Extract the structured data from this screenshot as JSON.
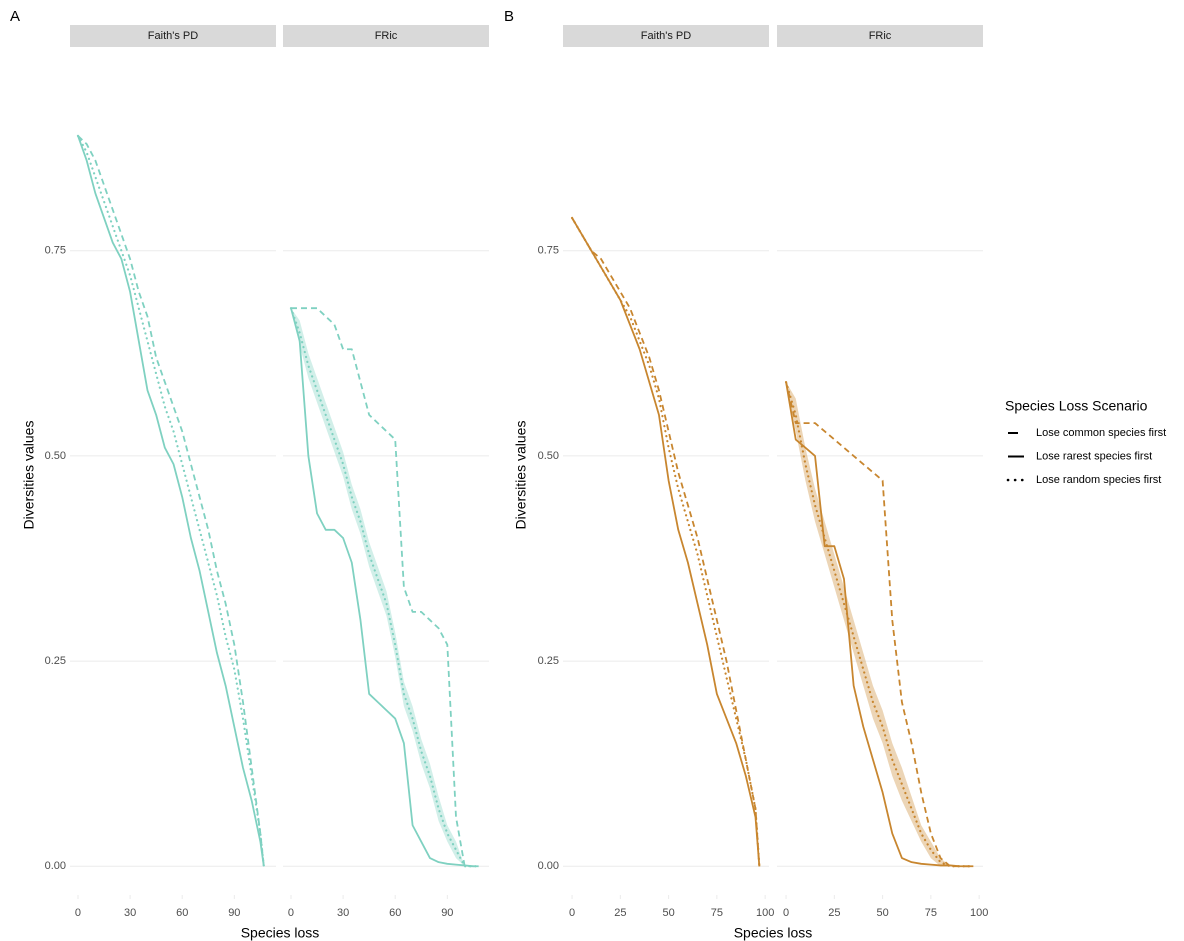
{
  "figure": {
    "groups": [
      {
        "tag": "A",
        "ylabel": "Diversities values",
        "xlabel": "Species loss"
      },
      {
        "tag": "B",
        "ylabel": "Diversities values",
        "xlabel": "Species loss"
      }
    ],
    "legend": {
      "title": "Species Loss Scenario"
    }
  },
  "chart_data": [
    {
      "type": "line",
      "title": "Faith's PD",
      "group": 0,
      "x": [
        0,
        5,
        10,
        15,
        20,
        25,
        30,
        35,
        40,
        45,
        50,
        55,
        60,
        65,
        70,
        75,
        80,
        85,
        90,
        95,
        100,
        105,
        107
      ],
      "xlim": [
        -4.6,
        114
      ],
      "xticks": [
        0,
        30,
        60,
        90
      ],
      "ylim": [
        -0.035,
        0.98
      ],
      "yticks": [
        {
          "value": 0,
          "label": "0.00"
        },
        {
          "value": 0.25,
          "label": "0.25"
        },
        {
          "value": 0.5,
          "label": "0.50"
        },
        {
          "value": 0.75,
          "label": "0.75"
        }
      ],
      "grid": true,
      "series": [
        {
          "name": "Lose common species first",
          "color": "#7fd1c1",
          "linestyle": "dashed",
          "values": [
            0.89,
            0.88,
            0.86,
            0.83,
            0.8,
            0.77,
            0.74,
            0.7,
            0.67,
            0.62,
            0.59,
            0.56,
            0.53,
            0.49,
            0.45,
            0.41,
            0.36,
            0.32,
            0.27,
            0.2,
            0.12,
            0.04,
            0.0
          ]
        },
        {
          "name": "Lose rarest species first",
          "color": "#7fd1c1",
          "linestyle": "solid",
          "values": [
            0.89,
            0.86,
            0.82,
            0.79,
            0.76,
            0.74,
            0.7,
            0.64,
            0.58,
            0.55,
            0.51,
            0.49,
            0.45,
            0.4,
            0.36,
            0.31,
            0.26,
            0.22,
            0.17,
            0.12,
            0.08,
            0.03,
            0.0
          ]
        },
        {
          "name": "Lose random species first",
          "color": "#7fd1c1",
          "linestyle": "dotted",
          "values": [
            0.89,
            0.87,
            0.84,
            0.81,
            0.78,
            0.75,
            0.72,
            0.68,
            0.64,
            0.6,
            0.56,
            0.53,
            0.49,
            0.45,
            0.41,
            0.37,
            0.33,
            0.28,
            0.24,
            0.18,
            0.11,
            0.04,
            0.0
          ]
        }
      ]
    },
    {
      "type": "line",
      "title": "FRic",
      "group": 0,
      "x": [
        0,
        5,
        10,
        15,
        20,
        25,
        30,
        35,
        40,
        45,
        50,
        55,
        60,
        65,
        70,
        75,
        80,
        85,
        90,
        95,
        100,
        105,
        108
      ],
      "xlim": [
        -4.6,
        114
      ],
      "xticks": [
        0,
        30,
        60,
        90
      ],
      "ylim": [
        -0.035,
        0.98
      ],
      "yticks": [
        {
          "value": 0,
          "label": "0.00"
        },
        {
          "value": 0.25,
          "label": "0.25"
        },
        {
          "value": 0.5,
          "label": "0.50"
        },
        {
          "value": 0.75,
          "label": "0.75"
        }
      ],
      "grid": true,
      "series": [
        {
          "name": "Lose common species first",
          "color": "#7fd1c1",
          "linestyle": "dashed",
          "values": [
            0.68,
            0.68,
            0.68,
            0.68,
            0.67,
            0.66,
            0.63,
            0.63,
            0.59,
            0.55,
            0.54,
            0.53,
            0.52,
            0.34,
            0.31,
            0.31,
            0.3,
            0.29,
            0.27,
            0.06,
            0.0,
            0.0,
            0.0
          ]
        },
        {
          "name": "Lose rarest species first",
          "color": "#7fd1c1",
          "linestyle": "solid",
          "values": [
            0.68,
            0.64,
            0.5,
            0.43,
            0.41,
            0.41,
            0.4,
            0.37,
            0.3,
            0.21,
            0.2,
            0.19,
            0.18,
            0.15,
            0.05,
            0.03,
            0.01,
            0.005,
            0.003,
            0.002,
            0.001,
            0,
            0
          ]
        },
        {
          "name": "Lose random species first",
          "color": "#7fd1c1",
          "linestyle": "dotted",
          "values": [
            0.68,
            0.65,
            0.61,
            0.58,
            0.55,
            0.52,
            0.49,
            0.45,
            0.42,
            0.38,
            0.35,
            0.32,
            0.27,
            0.21,
            0.18,
            0.14,
            0.11,
            0.07,
            0.04,
            0.02,
            0.0,
            0.0,
            0.0
          ],
          "lower": [
            0.68,
            0.635,
            0.595,
            0.565,
            0.535,
            0.505,
            0.475,
            0.435,
            0.405,
            0.365,
            0.335,
            0.305,
            0.255,
            0.195,
            0.165,
            0.125,
            0.095,
            0.055,
            0.03,
            0.01,
            0.0,
            0.0,
            0.0
          ],
          "upper": [
            0.68,
            0.665,
            0.625,
            0.595,
            0.565,
            0.535,
            0.505,
            0.465,
            0.435,
            0.395,
            0.365,
            0.335,
            0.285,
            0.225,
            0.195,
            0.155,
            0.125,
            0.085,
            0.05,
            0.03,
            0.0,
            0.0,
            0.0
          ]
        }
      ]
    },
    {
      "type": "line",
      "title": "Faith's PD",
      "group": 1,
      "x": [
        0,
        5,
        10,
        15,
        20,
        25,
        30,
        35,
        40,
        45,
        50,
        55,
        60,
        65,
        70,
        75,
        80,
        85,
        90,
        95,
        97
      ],
      "xlim": [
        -4.7,
        102
      ],
      "xticks": [
        0,
        25,
        50,
        75,
        100
      ],
      "ylim": [
        -0.035,
        0.98
      ],
      "yticks": [
        {
          "value": 0,
          "label": "0.00"
        },
        {
          "value": 0.25,
          "label": "0.25"
        },
        {
          "value": 0.5,
          "label": "0.50"
        },
        {
          "value": 0.75,
          "label": "0.75"
        }
      ],
      "grid": true,
      "series": [
        {
          "name": "Lose common species first",
          "color": "#c8862f",
          "linestyle": "dashed",
          "values": [
            0.79,
            0.77,
            0.75,
            0.74,
            0.72,
            0.7,
            0.68,
            0.65,
            0.62,
            0.58,
            0.53,
            0.48,
            0.44,
            0.4,
            0.35,
            0.3,
            0.25,
            0.19,
            0.13,
            0.07,
            0.0
          ]
        },
        {
          "name": "Lose rarest species first",
          "color": "#c8862f",
          "linestyle": "solid",
          "values": [
            0.79,
            0.77,
            0.75,
            0.73,
            0.71,
            0.69,
            0.66,
            0.63,
            0.59,
            0.55,
            0.47,
            0.41,
            0.37,
            0.32,
            0.27,
            0.21,
            0.18,
            0.15,
            0.11,
            0.06,
            0.0
          ]
        },
        {
          "name": "Lose random species first",
          "color": "#c8862f",
          "linestyle": "dotted",
          "values": [
            0.79,
            0.77,
            0.75,
            0.73,
            0.71,
            0.69,
            0.67,
            0.64,
            0.61,
            0.57,
            0.51,
            0.46,
            0.42,
            0.38,
            0.33,
            0.28,
            0.23,
            0.18,
            0.13,
            0.07,
            0.0
          ]
        }
      ]
    },
    {
      "type": "line",
      "title": "FRic",
      "group": 1,
      "x": [
        0,
        5,
        10,
        15,
        20,
        25,
        30,
        35,
        40,
        45,
        50,
        55,
        60,
        65,
        70,
        75,
        80,
        85,
        90,
        95,
        97
      ],
      "xlim": [
        -4.7,
        102
      ],
      "xticks": [
        0,
        25,
        50,
        75,
        100
      ],
      "ylim": [
        -0.035,
        0.98
      ],
      "yticks": [
        {
          "value": 0,
          "label": "0.00"
        },
        {
          "value": 0.25,
          "label": "0.25"
        },
        {
          "value": 0.5,
          "label": "0.50"
        },
        {
          "value": 0.75,
          "label": "0.75"
        }
      ],
      "grid": true,
      "series": [
        {
          "name": "Lose common species first",
          "color": "#c8862f",
          "linestyle": "dashed",
          "values": [
            0.59,
            0.54,
            0.54,
            0.54,
            0.53,
            0.52,
            0.51,
            0.5,
            0.49,
            0.48,
            0.47,
            0.3,
            0.2,
            0.15,
            0.09,
            0.04,
            0.01,
            0,
            0,
            0,
            0
          ]
        },
        {
          "name": "Lose rarest species first",
          "color": "#c8862f",
          "linestyle": "solid",
          "values": [
            0.59,
            0.52,
            0.51,
            0.5,
            0.39,
            0.39,
            0.35,
            0.22,
            0.17,
            0.13,
            0.09,
            0.04,
            0.01,
            0.005,
            0.003,
            0.002,
            0.001,
            0.001,
            0,
            0,
            0
          ]
        },
        {
          "name": "Lose random species first",
          "color": "#c8862f",
          "linestyle": "dotted",
          "values": [
            0.59,
            0.55,
            0.49,
            0.44,
            0.4,
            0.36,
            0.32,
            0.28,
            0.24,
            0.2,
            0.17,
            0.13,
            0.1,
            0.07,
            0.04,
            0.02,
            0.005,
            0,
            0,
            0,
            0
          ],
          "lower": [
            0.59,
            0.53,
            0.47,
            0.42,
            0.38,
            0.34,
            0.3,
            0.26,
            0.22,
            0.18,
            0.15,
            0.11,
            0.08,
            0.055,
            0.03,
            0.01,
            0,
            0,
            0,
            0,
            0
          ],
          "upper": [
            0.59,
            0.57,
            0.51,
            0.46,
            0.42,
            0.38,
            0.34,
            0.3,
            0.26,
            0.22,
            0.19,
            0.15,
            0.12,
            0.085,
            0.05,
            0.03,
            0.01,
            0,
            0,
            0,
            0
          ]
        }
      ]
    }
  ]
}
